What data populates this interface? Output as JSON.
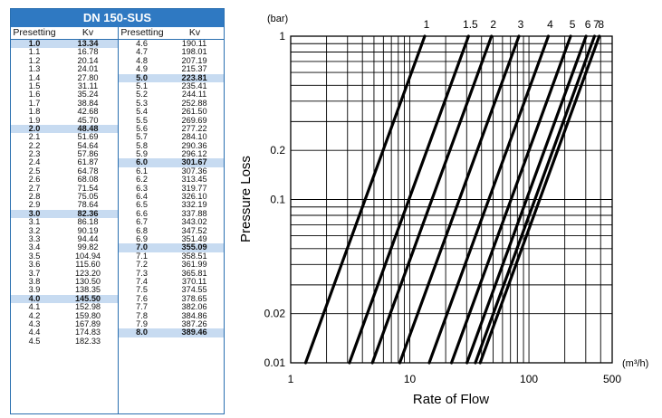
{
  "table": {
    "title": "DN 150-SUS",
    "col_presetting": "Presetting",
    "col_kv": "Kv",
    "left": [
      [
        "1.0",
        "13.34"
      ],
      [
        "1.1",
        "16.78"
      ],
      [
        "1.2",
        "20.14"
      ],
      [
        "1.3",
        "24.01"
      ],
      [
        "1.4",
        "27.80"
      ],
      [
        "1.5",
        "31.11"
      ],
      [
        "1.6",
        "35.24"
      ],
      [
        "1.7",
        "38.84"
      ],
      [
        "1.8",
        "42.68"
      ],
      [
        "1.9",
        "45.70"
      ],
      [
        "2.0",
        "48.48"
      ],
      [
        "2.1",
        "51.69"
      ],
      [
        "2.2",
        "54.64"
      ],
      [
        "2.3",
        "57.86"
      ],
      [
        "2.4",
        "61.87"
      ],
      [
        "2.5",
        "64.78"
      ],
      [
        "2.6",
        "68.08"
      ],
      [
        "2.7",
        "71.54"
      ],
      [
        "2.8",
        "75.05"
      ],
      [
        "2.9",
        "78.64"
      ],
      [
        "3.0",
        "82.36"
      ],
      [
        "3.1",
        "86.18"
      ],
      [
        "3.2",
        "90.19"
      ],
      [
        "3.3",
        "94.44"
      ],
      [
        "3.4",
        "99.82"
      ],
      [
        "3.5",
        "104.94"
      ],
      [
        "3.6",
        "115.60"
      ],
      [
        "3.7",
        "123.20"
      ],
      [
        "3.8",
        "130.50"
      ],
      [
        "3.9",
        "138.35"
      ],
      [
        "4.0",
        "145.50"
      ],
      [
        "4.1",
        "152.98"
      ],
      [
        "4.2",
        "159.80"
      ],
      [
        "4.3",
        "167.89"
      ],
      [
        "4.4",
        "174.83"
      ],
      [
        "4.5",
        "182.33"
      ]
    ],
    "right": [
      [
        "4.6",
        "190.11"
      ],
      [
        "4.7",
        "198.01"
      ],
      [
        "4.8",
        "207.19"
      ],
      [
        "4.9",
        "215.37"
      ],
      [
        "5.0",
        "223.81"
      ],
      [
        "5.1",
        "235.41"
      ],
      [
        "5.2",
        "244.11"
      ],
      [
        "5.3",
        "252.88"
      ],
      [
        "5.4",
        "261.50"
      ],
      [
        "5.5",
        "269.69"
      ],
      [
        "5.6",
        "277.22"
      ],
      [
        "5.7",
        "284.10"
      ],
      [
        "5.8",
        "290.36"
      ],
      [
        "5.9",
        "296.12"
      ],
      [
        "6.0",
        "301.67"
      ],
      [
        "6.1",
        "307.36"
      ],
      [
        "6.2",
        "313.45"
      ],
      [
        "6.3",
        "319.77"
      ],
      [
        "6.4",
        "326.10"
      ],
      [
        "6.5",
        "332.19"
      ],
      [
        "6.6",
        "337.88"
      ],
      [
        "6.7",
        "343.02"
      ],
      [
        "6.8",
        "347.52"
      ],
      [
        "6.9",
        "351.49"
      ],
      [
        "7.0",
        "355.09"
      ],
      [
        "7.1",
        "358.51"
      ],
      [
        "7.2",
        "361.99"
      ],
      [
        "7.3",
        "365.81"
      ],
      [
        "7.4",
        "370.11"
      ],
      [
        "7.5",
        "374.55"
      ],
      [
        "7.6",
        "378.65"
      ],
      [
        "7.7",
        "382.06"
      ],
      [
        "7.8",
        "384.86"
      ],
      [
        "7.9",
        "387.26"
      ],
      [
        "8.0",
        "389.46"
      ]
    ],
    "highlight_color": "#c7dbf1",
    "header_color": "#2f79c2"
  },
  "chart_data": {
    "type": "line",
    "x_scale": "log",
    "y_scale": "log",
    "xlim": [
      1,
      500
    ],
    "ylim": [
      0.01,
      1
    ],
    "xlabel": "Rate of Flow",
    "ylabel": "Pressure Loss",
    "x_unit": "(m³/h)",
    "y_unit": "(bar)",
    "x_ticks": [
      "1",
      "10",
      "100",
      "500"
    ],
    "y_ticks": [
      "0.01",
      "0.02",
      "0.1",
      "0.2",
      "1"
    ],
    "grid": true,
    "series": [
      {
        "name": "1",
        "kv": 13.34,
        "points": [
          [
            1.334,
            0.01
          ],
          [
            13.34,
            1
          ]
        ]
      },
      {
        "name": "1.5",
        "kv": 31.11,
        "points": [
          [
            3.111,
            0.01
          ],
          [
            31.11,
            1
          ]
        ]
      },
      {
        "name": "2",
        "kv": 48.48,
        "points": [
          [
            4.848,
            0.01
          ],
          [
            48.48,
            1
          ]
        ]
      },
      {
        "name": "3",
        "kv": 82.36,
        "points": [
          [
            8.236,
            0.01
          ],
          [
            82.36,
            1
          ]
        ]
      },
      {
        "name": "4",
        "kv": 145.5,
        "points": [
          [
            14.55,
            0.01
          ],
          [
            145.5,
            1
          ]
        ]
      },
      {
        "name": "5",
        "kv": 223.81,
        "points": [
          [
            22.381,
            0.01
          ],
          [
            223.81,
            1
          ]
        ]
      },
      {
        "name": "6",
        "kv": 301.67,
        "points": [
          [
            30.167,
            0.01
          ],
          [
            301.67,
            1
          ]
        ]
      },
      {
        "name": "7",
        "kv": 355.09,
        "points": [
          [
            35.509,
            0.01
          ],
          [
            355.09,
            1
          ]
        ]
      },
      {
        "name": "8",
        "kv": 389.46,
        "points": [
          [
            38.946,
            0.01
          ],
          [
            389.46,
            1
          ]
        ]
      }
    ],
    "line_color": "#000000"
  }
}
